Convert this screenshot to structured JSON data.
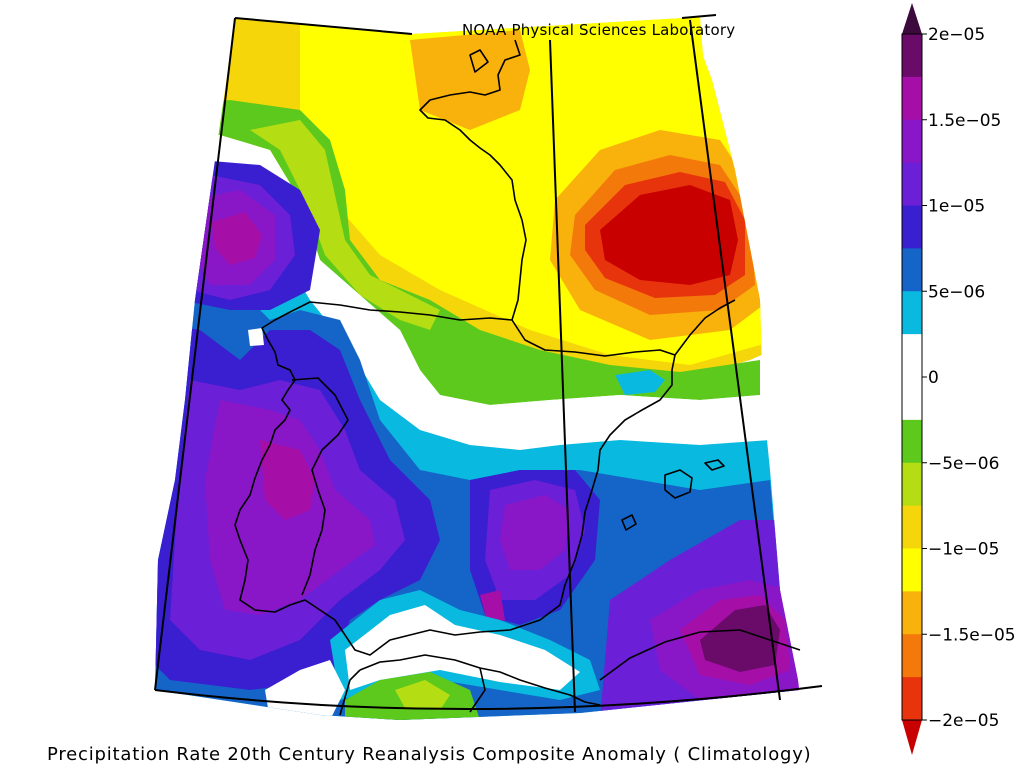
{
  "figure": {
    "attribution": "NOAA Physical Sciences Laboratory",
    "caption": "Precipitation Rate 20th Century Reanalysis Composite Anomaly ( Climatology)"
  },
  "colorbar": {
    "orientation": "vertical",
    "placement": "right",
    "extend": "both",
    "tick_labels": [
      "2e−05",
      "1.5e−05",
      "1e−05",
      "5e−06",
      "0",
      "−5e−06",
      "−1e−05",
      "−1.5e−05",
      "−2e−05"
    ],
    "bins": [
      {
        "from": 1.75e-05,
        "to": 2e-05,
        "color": "#6a0b6a"
      },
      {
        "from": 1.5e-05,
        "to": 1.75e-05,
        "color": "#a50fa8"
      },
      {
        "from": 1.25e-05,
        "to": 1.5e-05,
        "color": "#8a17c7"
      },
      {
        "from": 1e-05,
        "to": 1.25e-05,
        "color": "#6b1fd6"
      },
      {
        "from": 7.5e-06,
        "to": 1e-05,
        "color": "#3a1fd0"
      },
      {
        "from": 5e-06,
        "to": 7.5e-06,
        "color": "#1565c8"
      },
      {
        "from": 2.5e-06,
        "to": 5e-06,
        "color": "#0ab9e0"
      },
      {
        "from": 0,
        "to": 2.5e-06,
        "color": "#ffffff"
      },
      {
        "from": -2.5e-06,
        "to": 0,
        "color": "#ffffff"
      },
      {
        "from": -5e-06,
        "to": -2.5e-06,
        "color": "#5dc91c"
      },
      {
        "from": -7.5e-06,
        "to": -5e-06,
        "color": "#b5dd13"
      },
      {
        "from": -1e-05,
        "to": -7.5e-06,
        "color": "#f5d60a"
      },
      {
        "from": -1.25e-05,
        "to": -1e-05,
        "color": "#ffff00"
      },
      {
        "from": -1.5e-05,
        "to": -1.25e-05,
        "color": "#f9b10c"
      },
      {
        "from": -1.75e-05,
        "to": -1.5e-05,
        "color": "#f4790b"
      },
      {
        "from": -2e-05,
        "to": -1.75e-05,
        "color": "#e8340c"
      }
    ],
    "over_color": "#3c0a3c",
    "under_color": "#c80000"
  },
  "map": {
    "region": "Iberian Peninsula, France, western Mediterranean",
    "gridlines": true,
    "coastlines": true,
    "regional_anomaly_colors": {
      "france_north": "#ffff00",
      "brittany": "#f9b10c",
      "gulf_of_lion_maximum": "#c80000",
      "central_portugal": "#8a17c7",
      "atlantic_west": "#8a17c7",
      "south_balearic_sea": "#a50fa8",
      "central_mediterranean_southeast": "#6a0b6a",
      "ebro_north": "#5dc91c",
      "morocco_north": "#5dc91c"
    }
  }
}
